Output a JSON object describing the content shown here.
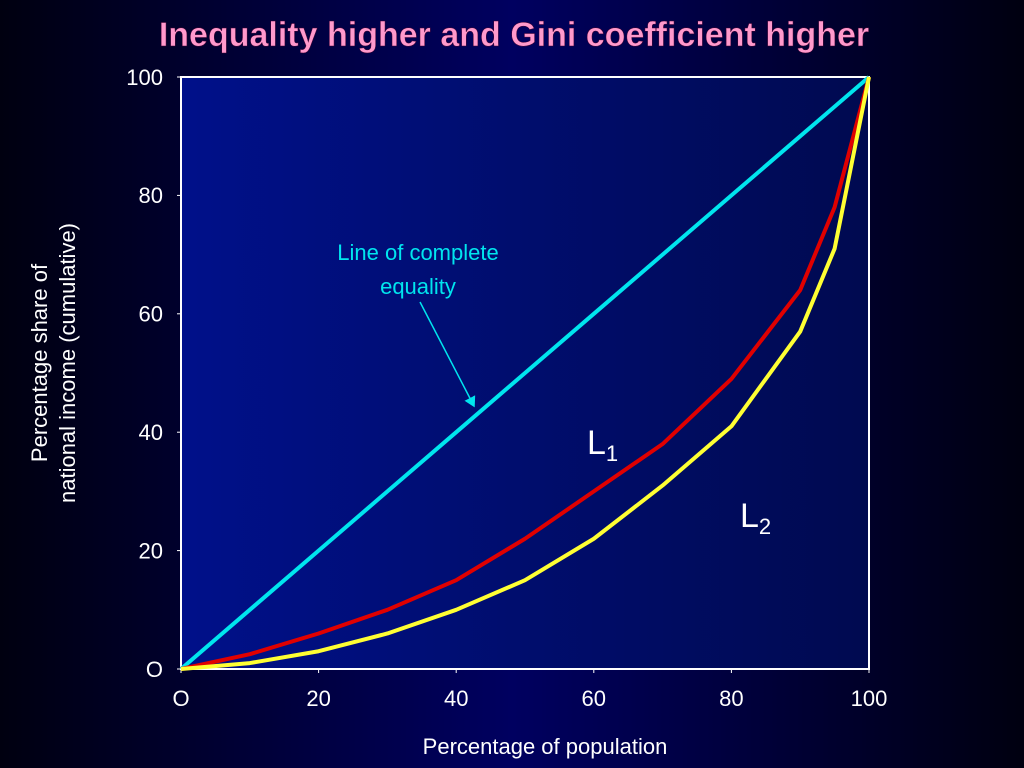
{
  "chart_data": {
    "type": "line",
    "title": "Inequality higher and Gini coefficient higher",
    "x_label": "Percentage of population",
    "y_label": [
      "Percentage share of",
      "national income (cumulative)"
    ],
    "x": [
      0,
      10,
      20,
      30,
      40,
      50,
      60,
      70,
      80,
      90,
      95,
      100
    ],
    "series": [
      {
        "name": "Line of complete equality",
        "color": "#00e5ee",
        "values": [
          0,
          10,
          20,
          30,
          40,
          50,
          60,
          70,
          80,
          90,
          95,
          100
        ]
      },
      {
        "name": "L1",
        "color": "#e00000",
        "values": [
          0,
          2.5,
          6,
          10,
          15,
          22,
          30,
          38,
          49,
          64,
          78,
          100
        ]
      },
      {
        "name": "L2",
        "color": "#ffff33",
        "values": [
          0,
          1,
          3,
          6,
          10,
          15,
          22,
          31,
          41,
          57,
          71,
          100
        ]
      }
    ],
    "annotations": [
      {
        "lines": [
          "Line of complete",
          "equality"
        ],
        "color": "#00e5ee"
      },
      {
        "label": "L",
        "subscript": "1"
      },
      {
        "label": "L",
        "subscript": "2"
      }
    ],
    "xlim": [
      0,
      100
    ],
    "ylim": [
      0,
      100
    ],
    "xticks": [
      {
        "value": 0,
        "label": "O"
      },
      20,
      40,
      60,
      80,
      100
    ],
    "yticks": [
      {
        "value": 0,
        "label": "O"
      },
      20,
      40,
      60,
      80,
      100
    ],
    "grid": false
  }
}
